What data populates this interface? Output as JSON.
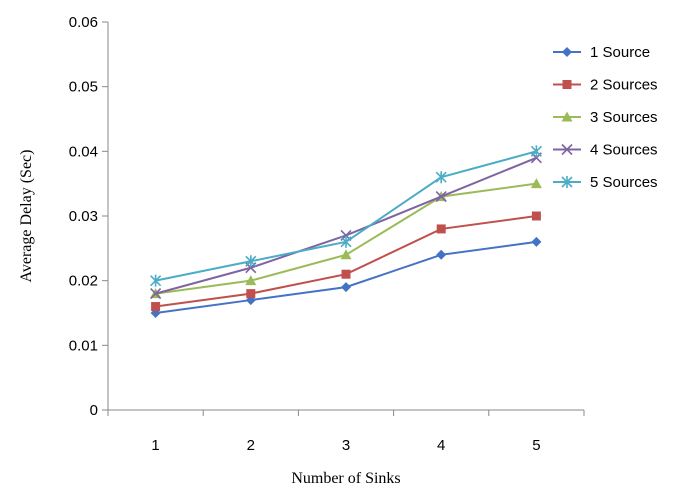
{
  "chart_data": {
    "type": "line",
    "xlabel": "Number of Sinks",
    "ylabel": "Average Delay (Sec)",
    "categories": [
      "1",
      "2",
      "3",
      "4",
      "5"
    ],
    "x": [
      1,
      2,
      3,
      4,
      5
    ],
    "ylim": [
      0,
      0.06
    ],
    "yticks": [
      0,
      0.01,
      0.02,
      0.03,
      0.04,
      0.05,
      0.06
    ],
    "ytick_labels": [
      "0",
      "0.01",
      "0.02",
      "0.03",
      "0.04",
      "0.05",
      "0.06"
    ],
    "grid": false,
    "legend_position": "right",
    "series": [
      {
        "name": "1 Source",
        "color": "#4472C4",
        "marker": "diamond",
        "values": [
          0.015,
          0.017,
          0.019,
          0.024,
          0.026
        ]
      },
      {
        "name": "2 Sources",
        "color": "#C0504D",
        "marker": "square",
        "values": [
          0.016,
          0.018,
          0.021,
          0.028,
          0.03
        ]
      },
      {
        "name": "3 Sources",
        "color": "#9BBB59",
        "marker": "triangle",
        "values": [
          0.018,
          0.02,
          0.024,
          0.033,
          0.035
        ]
      },
      {
        "name": "4 Sources",
        "color": "#8064A2",
        "marker": "x",
        "values": [
          0.018,
          0.022,
          0.027,
          0.033,
          0.039
        ]
      },
      {
        "name": "5 Sources",
        "color": "#4BACC6",
        "marker": "star",
        "values": [
          0.02,
          0.023,
          0.026,
          0.036,
          0.04
        ]
      }
    ]
  }
}
